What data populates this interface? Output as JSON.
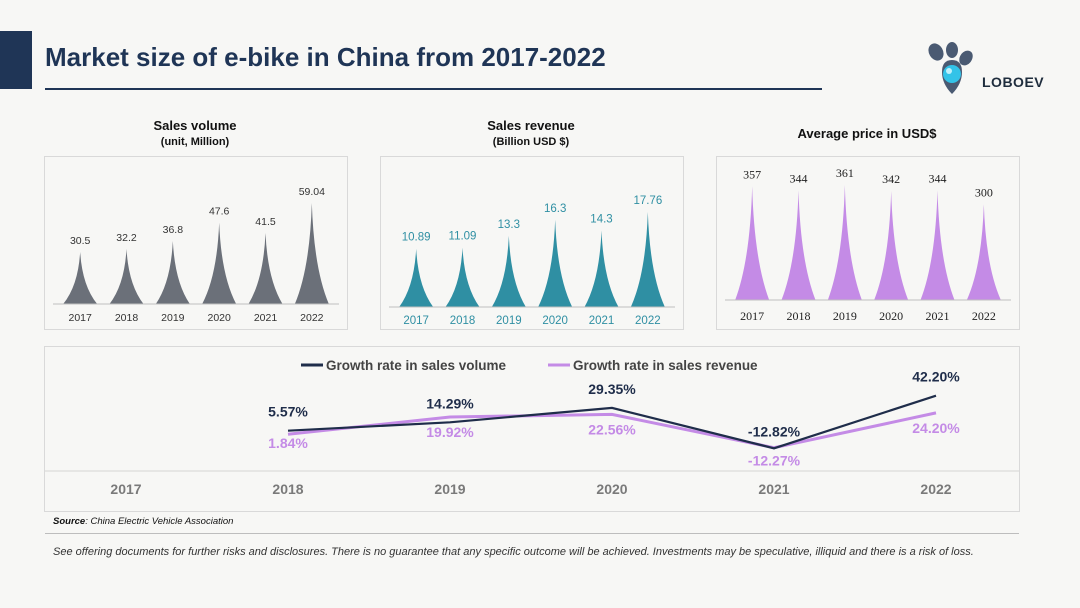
{
  "header": {
    "title": "Market size of e-bike in China from 2017-2022",
    "brand": "LOBOEV"
  },
  "colors": {
    "navy": "#1f3556",
    "volume_gray": "#6b7079",
    "revenue_teal": "#2f8fa3",
    "price_purple": "#c48be6",
    "line_volume": "#1f2d4a",
    "line_revenue": "#c48be6"
  },
  "chart_data": [
    {
      "type": "bar",
      "title": "Sales volume",
      "subtitle": "(unit, Million)",
      "categories": [
        "2017",
        "2018",
        "2019",
        "2020",
        "2021",
        "2022"
      ],
      "values": [
        30.5,
        32.2,
        36.8,
        47.6,
        41.5,
        59.04
      ],
      "value_labels": [
        "30.5",
        "32.2",
        "36.8",
        "47.6",
        "41.5",
        "59.04"
      ]
    },
    {
      "type": "bar",
      "title": "Sales revenue",
      "subtitle": "(Billion USD $)",
      "categories": [
        "2017",
        "2018",
        "2019",
        "2020",
        "2021",
        "2022"
      ],
      "values": [
        10.89,
        11.09,
        13.3,
        16.3,
        14.3,
        17.76
      ],
      "value_labels": [
        "10.89",
        "11.09",
        "13.3",
        "16.3",
        "14.3",
        "17.76"
      ]
    },
    {
      "type": "bar",
      "title": "Average price in USD$",
      "categories": [
        "2017",
        "2018",
        "2019",
        "2020",
        "2021",
        "2022"
      ],
      "values": [
        357,
        344,
        361,
        342,
        344,
        300
      ],
      "value_labels": [
        "357",
        "344",
        "361",
        "342",
        "344",
        "300"
      ]
    },
    {
      "type": "line",
      "categories": [
        "2017",
        "2018",
        "2019",
        "2020",
        "2021",
        "2022"
      ],
      "legend": "top",
      "series": [
        {
          "name": "Growth rate in sales volume",
          "x": [
            "2018",
            "2019",
            "2020",
            "2021",
            "2022"
          ],
          "values": [
            5.57,
            14.29,
            29.35,
            -12.82,
            42.2
          ],
          "value_labels": [
            "5.57%",
            "14.29%",
            "29.35%",
            "-12.82%",
            "42.20%"
          ]
        },
        {
          "name": "Growth rate in sales revenue",
          "x": [
            "2018",
            "2019",
            "2020",
            "2021",
            "2022"
          ],
          "values": [
            1.84,
            19.92,
            22.56,
            -12.27,
            24.2
          ],
          "value_labels": [
            "1.84%",
            "19.92%",
            "22.56%",
            "-12.27%",
            "24.20%"
          ]
        }
      ]
    }
  ],
  "footer": {
    "source_label": "Source",
    "source_text": ": China Electric Vehicle Association",
    "disclaimer": "See offering documents for further risks and disclosures. There is no guarantee that any specific outcome will be achieved. Investments may be speculative, illiquid and there is a risk of loss."
  }
}
